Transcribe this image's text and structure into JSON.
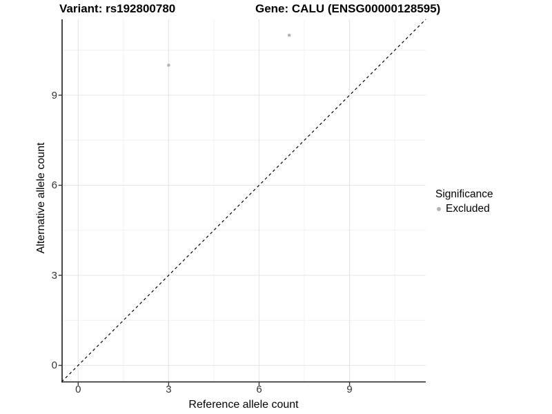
{
  "chart_data": {
    "type": "scatter",
    "title_left": "Variant: rs192800780",
    "title_right": "Gene: CALU (ENSG00000128595)",
    "xlabel": "Reference allele count",
    "ylabel": "Alternative allele count",
    "x_ticks": [
      0,
      3,
      6,
      9
    ],
    "y_ticks": [
      0,
      3,
      6,
      9
    ],
    "x_minor_ticks": [
      1.5,
      4.5,
      7.5,
      10.5
    ],
    "y_minor_ticks": [
      1.5,
      4.5,
      7.5,
      10.5
    ],
    "xlim": [
      -0.55,
      11.53
    ],
    "ylim": [
      -0.55,
      11.53
    ],
    "grid": true,
    "identity_line": {
      "slope": 1,
      "intercept": 0,
      "style": "dashed",
      "color": "#000000"
    },
    "series": [
      {
        "name": "Excluded",
        "color": "#b3b3b3",
        "points": [
          {
            "x": 3,
            "y": 10
          },
          {
            "x": 7,
            "y": 11
          }
        ]
      }
    ],
    "legend": {
      "title": "Significance",
      "position": "right",
      "items": [
        {
          "label": "Excluded",
          "color": "#b3b3b3"
        }
      ]
    }
  },
  "colors": {
    "background": "#ffffff",
    "axis_line": "#1a1a1a",
    "tick_mark": "#333333",
    "grid_major": "#e5e5e5",
    "grid_minor": "#f0f0f0",
    "point": "#b3b3b3",
    "text": "#000000"
  }
}
